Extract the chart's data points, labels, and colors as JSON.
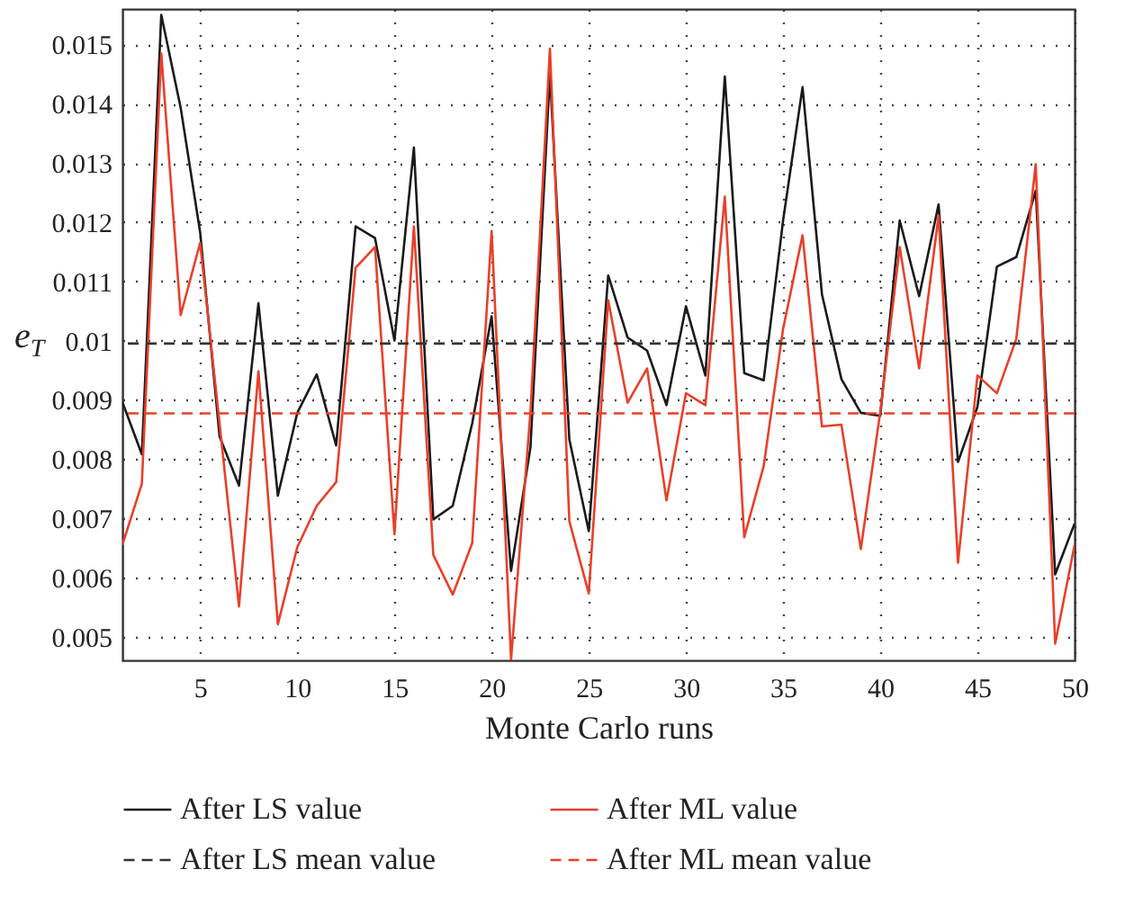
{
  "chart_data": {
    "type": "line",
    "xlabel": "Monte Carlo runs",
    "ylabel": "e$_{T}$",
    "x": [
      1,
      2,
      3,
      4,
      5,
      6,
      7,
      8,
      9,
      10,
      11,
      12,
      13,
      14,
      15,
      16,
      17,
      18,
      19,
      20,
      21,
      22,
      23,
      24,
      25,
      26,
      27,
      28,
      29,
      30,
      31,
      32,
      33,
      34,
      35,
      36,
      37,
      38,
      39,
      40,
      41,
      42,
      43,
      44,
      45,
      46,
      47,
      48,
      49,
      50
    ],
    "series": [
      {
        "name": "After LS value",
        "color": "#1a1a1a",
        "line_style": "solid",
        "values": [
          0.00896,
          0.00808,
          0.0155,
          0.01393,
          0.01183,
          0.00838,
          0.00755,
          0.01063,
          0.00738,
          0.00878,
          0.00943,
          0.00823,
          0.01193,
          0.01173,
          0.01,
          0.01326,
          0.00698,
          0.00721,
          0.0086,
          0.01041,
          0.00611,
          0.0082,
          0.0145,
          0.00833,
          0.00678,
          0.0111,
          0.01005,
          0.00983,
          0.00891,
          0.01058,
          0.00941,
          0.01446,
          0.00945,
          0.00933,
          0.01203,
          0.01428,
          0.01078,
          0.00935,
          0.00878,
          0.00873,
          0.01203,
          0.01075,
          0.0123,
          0.00795,
          0.00888,
          0.01125,
          0.01141,
          0.01253,
          0.00605,
          0.00691
        ]
      },
      {
        "name": "After ML value",
        "color": "#e8402a",
        "line_style": "solid",
        "values": [
          0.00655,
          0.00758,
          0.01485,
          0.01043,
          0.01165,
          0.0086,
          0.00551,
          0.00948,
          0.00521,
          0.00651,
          0.00721,
          0.00761,
          0.01123,
          0.01158,
          0.00673,
          0.01193,
          0.00638,
          0.00571,
          0.00658,
          0.01185,
          0.00461,
          0.0088,
          0.01493,
          0.00695,
          0.00573,
          0.01068,
          0.00895,
          0.00953,
          0.0073,
          0.00911,
          0.00891,
          0.01243,
          0.00668,
          0.00788,
          0.0102,
          0.01178,
          0.00855,
          0.00858,
          0.00648,
          0.0088,
          0.01158,
          0.00953,
          0.01211,
          0.00625,
          0.00941,
          0.00911,
          0.01003,
          0.01298,
          0.00488,
          0.00655
        ]
      }
    ],
    "ref_lines": [
      {
        "axis": "y",
        "value": 0.00995,
        "label": "After LS mean value",
        "color": "#333333",
        "line_style": "dashed"
      },
      {
        "axis": "y",
        "value": 0.00877,
        "label": "After ML mean value",
        "color": "#e8402a",
        "line_style": "dashed"
      }
    ],
    "xlim": [
      1,
      50
    ],
    "xticks": [
      5,
      10,
      15,
      20,
      25,
      30,
      35,
      40,
      45,
      50
    ],
    "ylim": [
      0.0046,
      0.0156
    ],
    "yticks": [
      0.005,
      0.006,
      0.007,
      0.008,
      0.009,
      0.01,
      0.011,
      0.012,
      0.013,
      0.014,
      0.015
    ],
    "grid": true,
    "legend": "bottom",
    "marker": "none"
  }
}
